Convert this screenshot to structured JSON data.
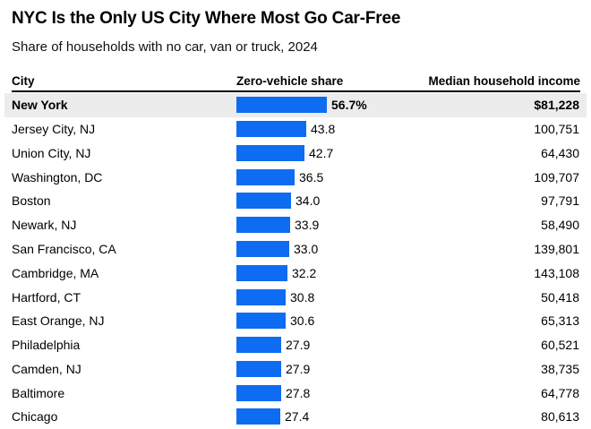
{
  "title": "NYC Is the Only US City Where Most Go Car-Free",
  "subtitle": "Share of households with no car, van or truck, 2024",
  "columns": {
    "city": "City",
    "share": "Zero-vehicle share",
    "income": "Median household income"
  },
  "colors": {
    "bar": "#0d6cf2",
    "highlight_bg": "#ececec",
    "rule": "#000000",
    "text": "#000000"
  },
  "chart_data": {
    "type": "bar",
    "orientation": "horizontal",
    "title": "NYC Is the Only US City Where Most Go Car-Free",
    "subtitle": "Share of households with no car, van or truck, 2024",
    "categories": [
      "New York",
      "Jersey City, NJ",
      "Union City, NJ",
      "Washington, DC",
      "Boston",
      "Newark, NJ",
      "San Francisco, CA",
      "Cambridge, MA",
      "Hartford, CT",
      "East Orange, NJ",
      "Philadelphia",
      "Camden, NJ",
      "Baltimore",
      "Chicago"
    ],
    "series": [
      {
        "name": "Zero-vehicle share (%)",
        "values": [
          56.7,
          43.8,
          42.7,
          36.5,
          34.0,
          33.9,
          33.0,
          32.2,
          30.8,
          30.6,
          27.9,
          27.9,
          27.8,
          27.4
        ]
      },
      {
        "name": "Median household income ($)",
        "values": [
          81228,
          100751,
          64430,
          109707,
          97791,
          58490,
          139801,
          143108,
          50418,
          65313,
          60521,
          38735,
          64778,
          80613
        ]
      }
    ],
    "xlim": [
      0,
      56.7
    ],
    "grid": false,
    "legend_position": "none",
    "data_labels": true,
    "highlighted_category": "New York"
  },
  "rows": [
    {
      "city": "New York",
      "share": 56.7,
      "share_label": "56.7%",
      "income_label": "$81,228",
      "highlight": true
    },
    {
      "city": "Jersey City, NJ",
      "share": 43.8,
      "share_label": "43.8",
      "income_label": "100,751",
      "highlight": false
    },
    {
      "city": "Union City, NJ",
      "share": 42.7,
      "share_label": "42.7",
      "income_label": "64,430",
      "highlight": false
    },
    {
      "city": "Washington, DC",
      "share": 36.5,
      "share_label": "36.5",
      "income_label": "109,707",
      "highlight": false
    },
    {
      "city": "Boston",
      "share": 34.0,
      "share_label": "34.0",
      "income_label": "97,791",
      "highlight": false
    },
    {
      "city": "Newark, NJ",
      "share": 33.9,
      "share_label": "33.9",
      "income_label": "58,490",
      "highlight": false
    },
    {
      "city": "San Francisco, CA",
      "share": 33.0,
      "share_label": "33.0",
      "income_label": "139,801",
      "highlight": false
    },
    {
      "city": "Cambridge, MA",
      "share": 32.2,
      "share_label": "32.2",
      "income_label": "143,108",
      "highlight": false
    },
    {
      "city": "Hartford, CT",
      "share": 30.8,
      "share_label": "30.8",
      "income_label": "50,418",
      "highlight": false
    },
    {
      "city": "East Orange, NJ",
      "share": 30.6,
      "share_label": "30.6",
      "income_label": "65,313",
      "highlight": false
    },
    {
      "city": "Philadelphia",
      "share": 27.9,
      "share_label": "27.9",
      "income_label": "60,521",
      "highlight": false
    },
    {
      "city": "Camden, NJ",
      "share": 27.9,
      "share_label": "27.9",
      "income_label": "38,735",
      "highlight": false
    },
    {
      "city": "Baltimore",
      "share": 27.8,
      "share_label": "27.8",
      "income_label": "64,778",
      "highlight": false
    },
    {
      "city": "Chicago",
      "share": 27.4,
      "share_label": "27.4",
      "income_label": "80,613",
      "highlight": false
    }
  ]
}
